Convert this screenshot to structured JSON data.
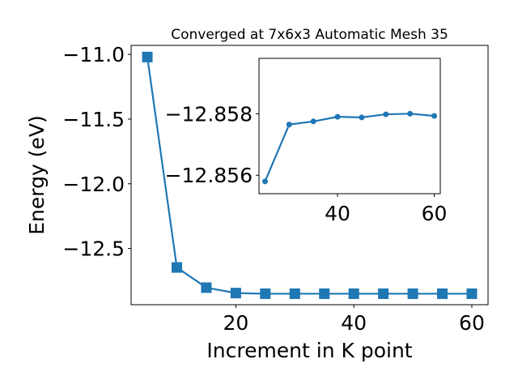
{
  "chart_data": [
    {
      "type": "line",
      "title": "Converged at 7x6x3 Automatic Mesh 35",
      "xlabel": "Increment in K point",
      "ylabel": "Energy (eV)",
      "xlim": [
        2.25,
        62.75
      ],
      "ylim": [
        -12.935,
        -10.93
      ],
      "xticks": [
        20,
        40,
        60
      ],
      "xtick_labels": [
        "20",
        "40",
        "60"
      ],
      "yticks": [
        -11.0,
        -11.5,
        -12.0,
        -12.5
      ],
      "ytick_labels": [
        "−11.0",
        "−11.5",
        "−12.0",
        "−12.5"
      ],
      "grid": false,
      "marker": "square",
      "color": "#1f77b4",
      "x": [
        5,
        10,
        15,
        20,
        25,
        30,
        35,
        40,
        45,
        50,
        55,
        60
      ],
      "y": [
        -11.02,
        -12.647,
        -12.803,
        -12.845,
        -12.85,
        -12.85,
        -12.85,
        -12.85,
        -12.85,
        -12.85,
        -12.85,
        -12.85
      ]
    },
    {
      "type": "line",
      "title": "",
      "xlabel": "",
      "ylabel": "",
      "xlim": [
        23.75,
        61.25
      ],
      "ylim": [
        -12.8554,
        -12.8598
      ],
      "xticks": [
        40,
        60
      ],
      "xtick_labels": [
        "40",
        "60"
      ],
      "yticks": [
        -12.858,
        -12.856
      ],
      "ytick_labels": [
        "−12.858",
        "−12.856"
      ],
      "grid": false,
      "marker": "circle",
      "color": "#1f77b4",
      "x": [
        25,
        30,
        35,
        40,
        45,
        50,
        55,
        60
      ],
      "y": [
        -12.8558,
        -12.85765,
        -12.85775,
        -12.8579,
        -12.85788,
        -12.85798,
        -12.858,
        -12.85793
      ]
    }
  ]
}
